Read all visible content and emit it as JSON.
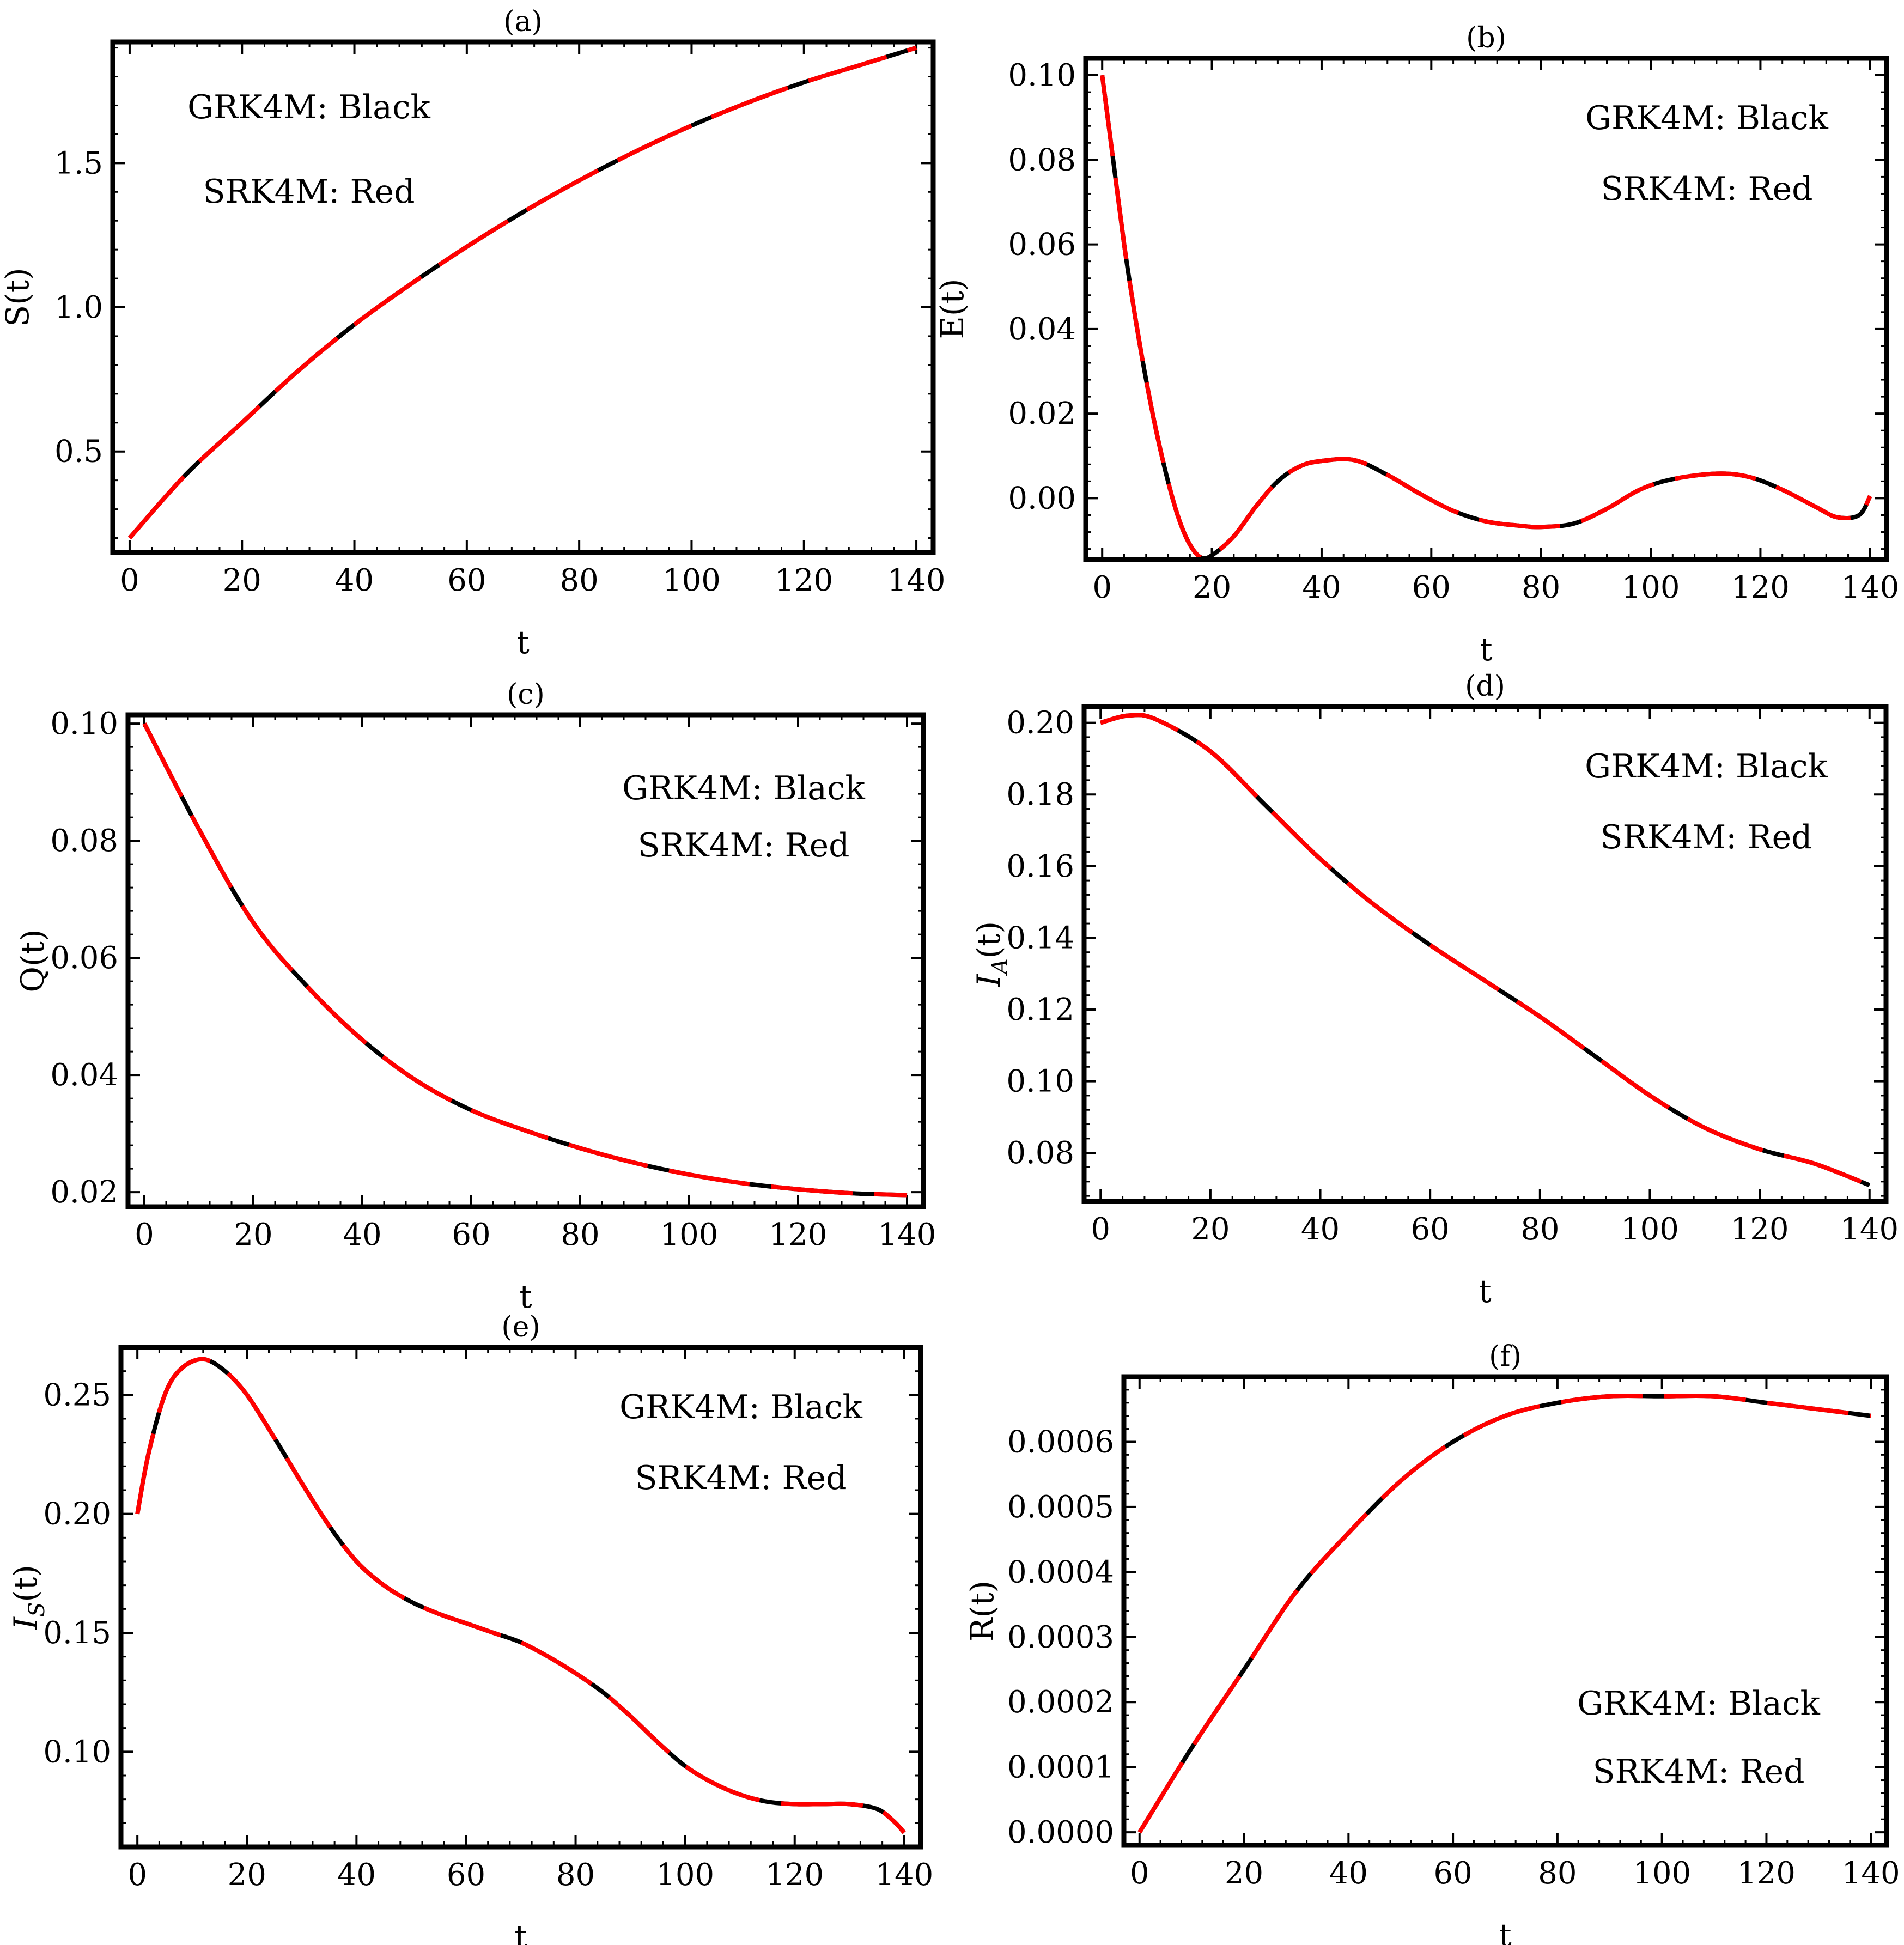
{
  "legend": {
    "line1": "GRK4M: Black",
    "line2": "SRK4M: Red"
  },
  "colors": {
    "black_curve": "#000000",
    "red_curve": "#ff0000",
    "frame": "#000000"
  },
  "chart_data": [
    {
      "id": "a",
      "type": "line",
      "title": "(a)",
      "xlabel": "t",
      "ylabel": "S(t)",
      "xlim": [
        -3,
        143
      ],
      "ylim": [
        0.15,
        1.92
      ],
      "xticks": [
        0,
        20,
        40,
        60,
        80,
        100,
        120,
        140
      ],
      "yticks": [
        0.5,
        1.0,
        1.5
      ],
      "yticklabels": [
        "0.5",
        "1.0",
        "1.5"
      ],
      "legend_position": "top-left",
      "series": [
        {
          "name": "GRK4M",
          "color": "black",
          "x": [
            0,
            10,
            20,
            30,
            40,
            50,
            60,
            70,
            80,
            90,
            100,
            110,
            120,
            130,
            140
          ],
          "y": [
            0.2,
            0.42,
            0.6,
            0.78,
            0.94,
            1.08,
            1.21,
            1.33,
            1.44,
            1.54,
            1.63,
            1.71,
            1.78,
            1.84,
            1.9
          ]
        },
        {
          "name": "SRK4M",
          "color": "red",
          "x": [
            0,
            10,
            20,
            30,
            40,
            50,
            60,
            70,
            80,
            90,
            100,
            110,
            120,
            130,
            140
          ],
          "y": [
            0.2,
            0.42,
            0.6,
            0.78,
            0.94,
            1.08,
            1.21,
            1.33,
            1.44,
            1.54,
            1.63,
            1.71,
            1.78,
            1.84,
            1.9
          ]
        }
      ]
    },
    {
      "id": "b",
      "type": "line",
      "title": "(b)",
      "xlabel": "t",
      "ylabel": "E(t)",
      "xlim": [
        -3,
        143
      ],
      "ylim": [
        -0.0145,
        0.104
      ],
      "xticks": [
        0,
        20,
        40,
        60,
        80,
        100,
        120,
        140
      ],
      "yticks": [
        0.0,
        0.02,
        0.04,
        0.06,
        0.08,
        0.1
      ],
      "yticklabels": [
        "0.00",
        "0.02",
        "0.04",
        "0.06",
        "0.08",
        "0.10"
      ],
      "legend_position": "top-right",
      "series": [
        {
          "name": "GRK4M",
          "color": "black",
          "x": [
            0,
            2,
            4,
            6,
            8,
            10,
            12,
            14,
            16,
            18,
            20,
            24,
            28,
            32,
            36,
            40,
            46,
            52,
            58,
            64,
            70,
            76,
            80,
            86,
            92,
            98,
            104,
            112,
            118,
            124,
            130,
            134,
            138,
            140
          ],
          "y": [
            0.1,
            0.08,
            0.06,
            0.043,
            0.028,
            0.015,
            0.004,
            -0.005,
            -0.011,
            -0.014,
            -0.0135,
            -0.009,
            -0.002,
            0.004,
            0.0075,
            0.0088,
            0.009,
            0.0055,
            0.001,
            -0.003,
            -0.0055,
            -0.0065,
            -0.0068,
            -0.006,
            -0.0025,
            0.002,
            0.0045,
            0.0058,
            0.005,
            0.002,
            -0.002,
            -0.0045,
            -0.004,
            0.0005
          ]
        },
        {
          "name": "SRK4M",
          "color": "red",
          "x": [
            0,
            2,
            4,
            6,
            8,
            10,
            12,
            14,
            16,
            18,
            20,
            24,
            28,
            32,
            36,
            40,
            46,
            52,
            58,
            64,
            70,
            76,
            80,
            86,
            92,
            98,
            104,
            112,
            118,
            124,
            130,
            134,
            138,
            140
          ],
          "y": [
            0.1,
            0.08,
            0.06,
            0.043,
            0.028,
            0.015,
            0.004,
            -0.005,
            -0.011,
            -0.014,
            -0.0135,
            -0.009,
            -0.002,
            0.004,
            0.0075,
            0.0088,
            0.009,
            0.0055,
            0.001,
            -0.003,
            -0.0055,
            -0.0065,
            -0.0068,
            -0.006,
            -0.0025,
            0.002,
            0.0045,
            0.0058,
            0.005,
            0.002,
            -0.002,
            -0.0045,
            -0.004,
            0.0005
          ]
        }
      ]
    },
    {
      "id": "c",
      "type": "line",
      "title": "(c)",
      "xlabel": "t",
      "ylabel": "Q(t)",
      "xlim": [
        -3,
        143
      ],
      "ylim": [
        0.0175,
        0.1015
      ],
      "xticks": [
        0,
        20,
        40,
        60,
        80,
        100,
        120,
        140
      ],
      "yticks": [
        0.02,
        0.04,
        0.06,
        0.08,
        0.1
      ],
      "yticklabels": [
        "0.02",
        "0.04",
        "0.06",
        "0.08",
        "0.10"
      ],
      "legend_position": "top-right",
      "series": [
        {
          "name": "GRK4M",
          "color": "black",
          "x": [
            0,
            10,
            20,
            30,
            40,
            50,
            60,
            70,
            80,
            90,
            100,
            110,
            120,
            130,
            140
          ],
          "y": [
            0.1,
            0.082,
            0.066,
            0.055,
            0.046,
            0.039,
            0.034,
            0.0305,
            0.0275,
            0.025,
            0.023,
            0.0215,
            0.0205,
            0.0198,
            0.0195
          ]
        },
        {
          "name": "SRK4M",
          "color": "red",
          "x": [
            0,
            10,
            20,
            30,
            40,
            50,
            60,
            70,
            80,
            90,
            100,
            110,
            120,
            130,
            140
          ],
          "y": [
            0.1,
            0.082,
            0.066,
            0.055,
            0.046,
            0.039,
            0.034,
            0.0305,
            0.0275,
            0.025,
            0.023,
            0.0215,
            0.0205,
            0.0198,
            0.0195
          ]
        }
      ]
    },
    {
      "id": "d",
      "type": "line",
      "title": "(d)",
      "xlabel": "t",
      "ylabel": "I_A(t)",
      "xlim": [
        -3,
        143
      ],
      "ylim": [
        0.0665,
        0.2045
      ],
      "xticks": [
        0,
        20,
        40,
        60,
        80,
        100,
        120,
        140
      ],
      "yticks": [
        0.08,
        0.1,
        0.12,
        0.14,
        0.16,
        0.18,
        0.2
      ],
      "yticklabels": [
        "0.08",
        "0.10",
        "0.12",
        "0.14",
        "0.16",
        "0.18",
        "0.20"
      ],
      "legend_position": "top-right",
      "series": [
        {
          "name": "GRK4M",
          "color": "black",
          "x": [
            0,
            5,
            10,
            20,
            30,
            40,
            50,
            60,
            70,
            80,
            90,
            100,
            110,
            120,
            130,
            140
          ],
          "y": [
            0.2,
            0.202,
            0.201,
            0.192,
            0.177,
            0.162,
            0.149,
            0.138,
            0.128,
            0.118,
            0.107,
            0.096,
            0.087,
            0.081,
            0.077,
            0.071
          ]
        },
        {
          "name": "SRK4M",
          "color": "red",
          "x": [
            0,
            5,
            10,
            20,
            30,
            40,
            50,
            60,
            70,
            80,
            90,
            100,
            110,
            120,
            130,
            140
          ],
          "y": [
            0.2,
            0.202,
            0.201,
            0.192,
            0.177,
            0.162,
            0.149,
            0.138,
            0.128,
            0.118,
            0.107,
            0.096,
            0.087,
            0.081,
            0.077,
            0.071
          ]
        }
      ]
    },
    {
      "id": "e",
      "type": "line",
      "title": "(e)",
      "xlabel": "t",
      "ylabel": "I_S(t)",
      "xlim": [
        -3,
        143
      ],
      "ylim": [
        0.06,
        0.27
      ],
      "xticks": [
        0,
        20,
        40,
        60,
        80,
        100,
        120,
        140
      ],
      "yticks": [
        0.1,
        0.15,
        0.2,
        0.25
      ],
      "yticklabels": [
        "0.10",
        "0.15",
        "0.20",
        "0.25"
      ],
      "legend_position": "top-right",
      "series": [
        {
          "name": "GRK4M",
          "color": "black",
          "x": [
            0,
            2,
            5,
            8,
            12,
            16,
            20,
            25,
            30,
            35,
            40,
            45,
            50,
            55,
            60,
            65,
            70,
            75,
            80,
            85,
            90,
            95,
            100,
            105,
            110,
            115,
            120,
            125,
            130,
            135,
            138,
            140
          ],
          "y": [
            0.2,
            0.225,
            0.25,
            0.261,
            0.265,
            0.26,
            0.25,
            0.232,
            0.213,
            0.195,
            0.18,
            0.17,
            0.163,
            0.158,
            0.154,
            0.15,
            0.146,
            0.14,
            0.133,
            0.125,
            0.115,
            0.104,
            0.094,
            0.087,
            0.082,
            0.079,
            0.078,
            0.078,
            0.078,
            0.076,
            0.071,
            0.066
          ]
        },
        {
          "name": "SRK4M",
          "color": "red",
          "x": [
            0,
            2,
            5,
            8,
            12,
            16,
            20,
            25,
            30,
            35,
            40,
            45,
            50,
            55,
            60,
            65,
            70,
            75,
            80,
            85,
            90,
            95,
            100,
            105,
            110,
            115,
            120,
            125,
            130,
            135,
            138,
            140
          ],
          "y": [
            0.2,
            0.225,
            0.25,
            0.261,
            0.265,
            0.26,
            0.25,
            0.232,
            0.213,
            0.195,
            0.18,
            0.17,
            0.163,
            0.158,
            0.154,
            0.15,
            0.146,
            0.14,
            0.133,
            0.125,
            0.115,
            0.104,
            0.094,
            0.087,
            0.082,
            0.079,
            0.078,
            0.078,
            0.078,
            0.076,
            0.071,
            0.066
          ]
        }
      ]
    },
    {
      "id": "f",
      "type": "line",
      "title": "(f)",
      "xlabel": "t",
      "ylabel": "R(t)",
      "xlim": [
        -3,
        143
      ],
      "ylim": [
        -2e-05,
        0.0007
      ],
      "xticks": [
        0,
        20,
        40,
        60,
        80,
        100,
        120,
        140
      ],
      "yticks": [
        0,
        0.0001,
        0.0002,
        0.0003,
        0.0004,
        0.0005,
        0.0006
      ],
      "yticklabels": [
        "0.0000",
        "0.0001",
        "0.0002",
        "0.0003",
        "0.0004",
        "0.0005",
        "0.0006"
      ],
      "legend_position": "bottom-right",
      "series": [
        {
          "name": "GRK4M",
          "color": "black",
          "x": [
            0,
            10,
            20,
            30,
            40,
            50,
            60,
            70,
            80,
            90,
            100,
            110,
            120,
            130,
            140
          ],
          "y": [
            0,
            0.00013,
            0.00025,
            0.00037,
            0.00046,
            0.00054,
            0.0006,
            0.00064,
            0.00066,
            0.00067,
            0.00067,
            0.00067,
            0.00066,
            0.00065,
            0.00064
          ]
        },
        {
          "name": "SRK4M",
          "color": "red",
          "x": [
            0,
            10,
            20,
            30,
            40,
            50,
            60,
            70,
            80,
            90,
            100,
            110,
            120,
            130,
            140
          ],
          "y": [
            0,
            0.00013,
            0.00025,
            0.00037,
            0.00046,
            0.00054,
            0.0006,
            0.00064,
            0.00066,
            0.00067,
            0.00067,
            0.00067,
            0.00066,
            0.00065,
            0.00064
          ]
        }
      ]
    }
  ]
}
